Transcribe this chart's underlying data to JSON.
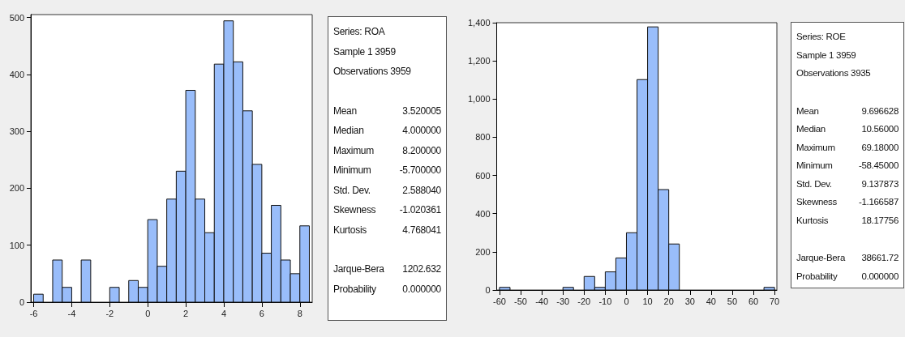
{
  "chart_data": [
    {
      "type": "histogram",
      "bins": [
        -6,
        -5.5,
        -5,
        -4.5,
        -4,
        -3.5,
        -3,
        -2.5,
        -2,
        -1.5,
        -1,
        -0.5,
        0,
        0.5,
        1,
        1.5,
        2,
        2.5,
        3,
        3.5,
        4,
        4.5,
        5,
        5.5,
        6,
        6.5,
        7,
        7.5,
        8,
        8.5
      ],
      "values": [
        14,
        0,
        74,
        26,
        0,
        74,
        0,
        0,
        26,
        0,
        38,
        26,
        145,
        63,
        181,
        230,
        372,
        181,
        122,
        418,
        494,
        422,
        336,
        242,
        86,
        170,
        74,
        50,
        134
      ],
      "color": "#99bdfa",
      "xlim": [
        -6.15,
        8.65
      ],
      "xticks": [
        -6,
        -4,
        -2,
        0,
        2,
        4,
        6,
        8
      ],
      "ylim": [
        0,
        505
      ],
      "yticks": [
        0,
        100,
        200,
        300,
        400,
        500
      ],
      "grid": false,
      "annotations": [
        "Series: ROA",
        "Sample 1 3959",
        "Observations 3959",
        "Mean\t3.520005",
        "Median\t4.000000",
        "Maximum\t8.200000",
        "Minimum\t-5.700000",
        "Std. Dev.\t2.588040",
        "Skewness\t-1.020361",
        "Kurtosis\t4.768041",
        "Jarque-Bera\t1202.632",
        "Probability\t0.000000"
      ]
    },
    {
      "type": "histogram",
      "bins": [
        -60,
        -55,
        -50,
        -45,
        -40,
        -35,
        -30,
        -25,
        -20,
        -15,
        -10,
        -5,
        0,
        5,
        10,
        15,
        20,
        25,
        30,
        35,
        40,
        45,
        50,
        55,
        60,
        65,
        70
      ],
      "values": [
        14,
        0,
        0,
        0,
        0,
        0,
        14,
        0,
        71,
        14,
        95,
        168,
        300,
        1102,
        1378,
        526,
        241,
        0,
        0,
        0,
        0,
        0,
        0,
        0,
        0,
        14
      ],
      "color": "#99bdfa",
      "xlim": [
        -61.3,
        71.1
      ],
      "xticks": [
        -60,
        -50,
        -40,
        -30,
        -20,
        -10,
        0,
        10,
        20,
        30,
        40,
        50,
        60,
        70
      ],
      "ylim": [
        0,
        1400
      ],
      "yticks": [
        0,
        {
          "value": 200,
          "label": "200"
        },
        {
          "value": 400,
          "label": "400"
        },
        {
          "value": 600,
          "label": "600"
        },
        {
          "value": 800,
          "label": "800"
        },
        {
          "value": 1000,
          "label": "1,000"
        },
        {
          "value": 1200,
          "label": "1,200"
        },
        {
          "value": 1400,
          "label": "1,400"
        }
      ],
      "grid": false,
      "annotations": [
        "Series: ROE",
        "Sample 1 3959",
        "Observations 3935",
        "Mean\t9.696628",
        "Median\t10.56000",
        "Maximum\t69.18000",
        "Minimum\t-58.45000",
        "Std. Dev.\t9.137873",
        "Skewness\t-1.166587",
        "Kurtosis\t18.17756",
        "Jarque-Bera\t38661.72",
        "Probability\t0.000000"
      ]
    }
  ]
}
